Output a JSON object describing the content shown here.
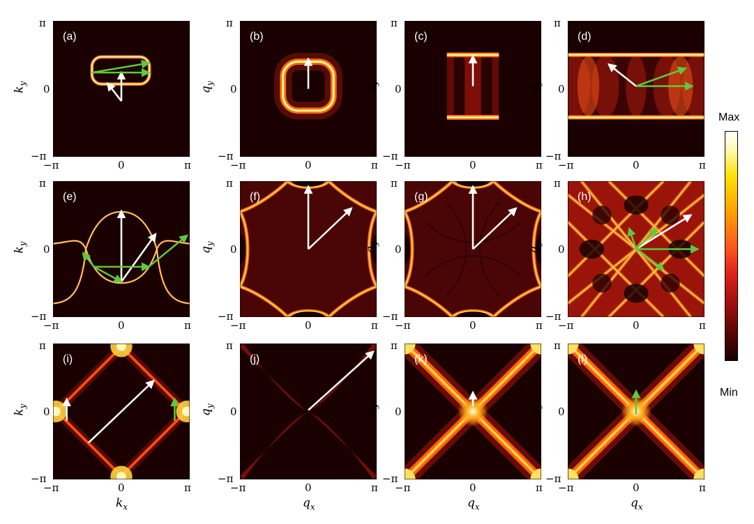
{
  "panels": [
    {
      "id": "a",
      "label": "(a)",
      "xaxis": "k",
      "yaxis": "k"
    },
    {
      "id": "b",
      "label": "(b)",
      "xaxis": "q",
      "yaxis": "q"
    },
    {
      "id": "c",
      "label": "(c)",
      "xaxis": "q",
      "yaxis": "q"
    },
    {
      "id": "d",
      "label": "(d)",
      "xaxis": "q",
      "yaxis": "q"
    },
    {
      "id": "e",
      "label": "(e)",
      "xaxis": "k",
      "yaxis": "k"
    },
    {
      "id": "f",
      "label": "(f)",
      "xaxis": "q",
      "yaxis": "q"
    },
    {
      "id": "g",
      "label": "(g)",
      "xaxis": "q",
      "yaxis": "q"
    },
    {
      "id": "h",
      "label": "(h)",
      "xaxis": "q",
      "yaxis": "q"
    },
    {
      "id": "i",
      "label": "(i)",
      "xaxis": "k",
      "yaxis": "k"
    },
    {
      "id": "j",
      "label": "(j)",
      "xaxis": "q",
      "yaxis": "q"
    },
    {
      "id": "k",
      "label": "(k)",
      "xaxis": "q",
      "yaxis": "q"
    },
    {
      "id": "l",
      "label": "(l)",
      "xaxis": "q",
      "yaxis": "q"
    }
  ],
  "ticks": {
    "neg": "−π",
    "zero": "0",
    "pos": "π"
  },
  "axis_labels": {
    "ky": "k",
    "kx": "k",
    "qy": "q",
    "qx": "q",
    "sub_x": "x",
    "sub_y": "y"
  },
  "colorbar": {
    "max": "Max",
    "min": "Min"
  },
  "colors": {
    "white_arrow": "#ffffff",
    "green_arrow": "#5fc83c"
  },
  "chart_data": {
    "type": "heatmap",
    "grid": "3x4",
    "xlim": [
      "−π",
      "π"
    ],
    "ylim": [
      "−π",
      "π"
    ],
    "colorscale": [
      "Min",
      "Max"
    ],
    "arrows": {
      "a": {
        "white": 2,
        "green": 2
      },
      "b": {
        "white": 1,
        "green": 0
      },
      "c": {
        "white": 1,
        "green": 0
      },
      "d": {
        "white": 1,
        "green": 2
      },
      "e": {
        "white": 2,
        "green": 4
      },
      "f": {
        "white": 2,
        "green": 0
      },
      "g": {
        "white": 2,
        "green": 0
      },
      "h": {
        "white": 1,
        "green": 4
      },
      "i": {
        "white": 2,
        "green": 1
      },
      "j": {
        "white": 1,
        "green": 0
      },
      "k": {
        "white": 1,
        "green": 0
      },
      "l": {
        "white": 0,
        "green": 1
      }
    }
  }
}
